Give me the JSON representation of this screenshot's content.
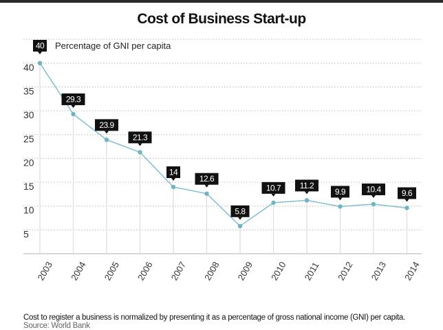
{
  "header": {
    "title": "Cost of Business Start-up"
  },
  "footer": {
    "note": "Cost to register a business is normalized by presenting it as a percentage of gross national income (GNI) per capita.",
    "source": "Source: World Bank"
  },
  "colors": {
    "line": "#7fc0cc",
    "marker": "#6fb4c2",
    "label_bg": "#111111",
    "grid": "#bbbbbb",
    "stem": "#dddddd"
  },
  "chart_data": {
    "type": "line",
    "title": "Cost of Business Start-up",
    "xlabel": "",
    "ylabel": "Percentage of GNI per capita",
    "unit_label": "Percentage of GNI per capita",
    "unit_badge": "40",
    "categories": [
      "2003",
      "2004",
      "2005",
      "2006",
      "2007",
      "2008",
      "2009",
      "2010",
      "2011",
      "2012",
      "2013",
      "2014"
    ],
    "series": [
      {
        "name": "Percentage of GNI per capita",
        "values": [
          40,
          29.3,
          23.9,
          21.3,
          14,
          12.6,
          5.8,
          10.7,
          11.2,
          9.9,
          10.4,
          9.6
        ],
        "data_labels": [
          "40",
          "29.3",
          "23.9",
          "21.3",
          "14",
          "12.6",
          "5.8",
          "10.7",
          "11.2",
          "9.9",
          "10.4",
          "9.6"
        ]
      }
    ],
    "yticks": [
      5,
      10,
      15,
      20,
      25,
      30,
      35,
      40
    ],
    "ylim": [
      0,
      45
    ],
    "grid": true,
    "legend": "top-left"
  }
}
